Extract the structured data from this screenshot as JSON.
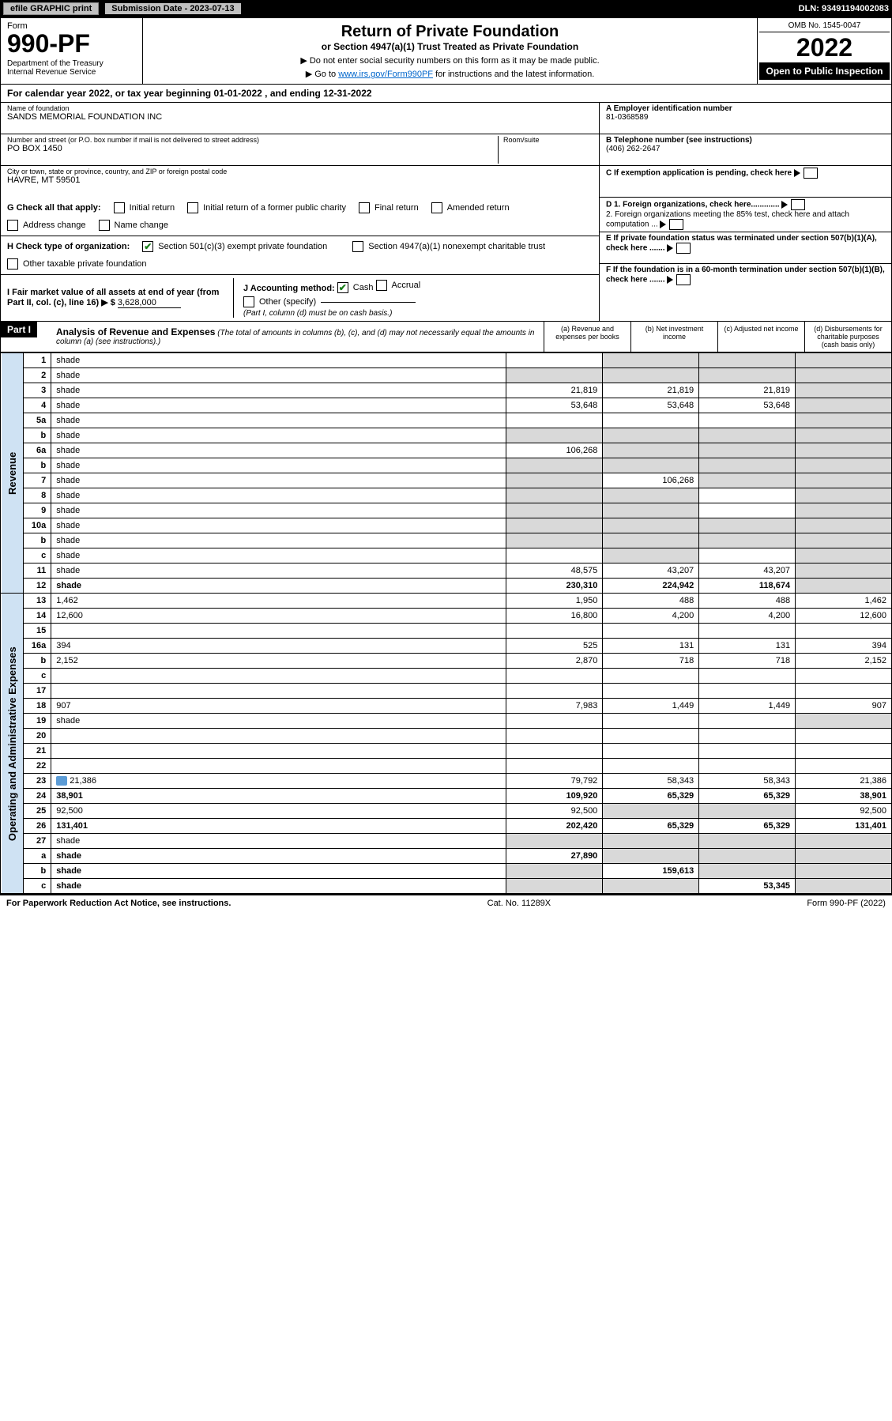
{
  "topbar": {
    "efile": "efile GRAPHIC print",
    "submission": "Submission Date - 2023-07-13",
    "dln": "DLN: 93491194002083"
  },
  "header": {
    "form_label": "Form",
    "form_no": "990-PF",
    "dept": "Department of the Treasury\nInternal Revenue Service",
    "title": "Return of Private Foundation",
    "subtitle": "or Section 4947(a)(1) Trust Treated as Private Foundation",
    "note1": "▶ Do not enter social security numbers on this form as it may be made public.",
    "note2_pre": "▶ Go to ",
    "note2_link": "www.irs.gov/Form990PF",
    "note2_post": " for instructions and the latest information.",
    "omb": "OMB No. 1545-0047",
    "year": "2022",
    "open": "Open to Public Inspection"
  },
  "calendar": "For calendar year 2022, or tax year beginning 01-01-2022                          , and ending 12-31-2022",
  "info": {
    "name_label": "Name of foundation",
    "name": "SANDS MEMORIAL FOUNDATION INC",
    "addr_label": "Number and street (or P.O. box number if mail is not delivered to street address)",
    "addr": "PO BOX 1450",
    "room_label": "Room/suite",
    "city_label": "City or town, state or province, country, and ZIP or foreign postal code",
    "city": "HAVRE, MT  59501",
    "a_label": "A Employer identification number",
    "a_val": "81-0368589",
    "b_label": "B Telephone number (see instructions)",
    "b_val": "(406) 262-2647",
    "c_label": "C If exemption application is pending, check here",
    "d1": "D 1. Foreign organizations, check here.............",
    "d2": "2. Foreign organizations meeting the 85% test, check here and attach computation ...",
    "e": "E  If private foundation status was terminated under section 507(b)(1)(A), check here .......",
    "f": "F  If the foundation is in a 60-month termination under section 507(b)(1)(B), check here .......",
    "g_label": "G Check all that apply:",
    "g_opts": [
      "Initial return",
      "Initial return of a former public charity",
      "Final return",
      "Amended return",
      "Address change",
      "Name change"
    ],
    "h_label": "H Check type of organization:",
    "h_opt1": "Section 501(c)(3) exempt private foundation",
    "h_opt2": "Section 4947(a)(1) nonexempt charitable trust",
    "h_opt3": "Other taxable private foundation",
    "i_label": "I Fair market value of all assets at end of year (from Part II, col. (c), line 16) ▶ $",
    "i_val": "3,628,000",
    "j_label": "J Accounting method:",
    "j_cash": "Cash",
    "j_accrual": "Accrual",
    "j_other": "Other (specify)",
    "j_note": "(Part I, column (d) must be on cash basis.)"
  },
  "part1": {
    "tag": "Part I",
    "title": "Analysis of Revenue and Expenses",
    "note": "(The total of amounts in columns (b), (c), and (d) may not necessarily equal the amounts in column (a) (see instructions).)",
    "col_a": "(a)   Revenue and expenses per books",
    "col_b": "(b)   Net investment income",
    "col_c": "(c)   Adjusted net income",
    "col_d": "(d)   Disbursements for charitable purposes (cash basis only)"
  },
  "side": {
    "rev": "Revenue",
    "exp": "Operating and Administrative Expenses"
  },
  "rows": [
    {
      "n": "1",
      "d": "shade",
      "a": "",
      "b": "shade",
      "c": "shade"
    },
    {
      "n": "2",
      "d": "shade",
      "a": "shade",
      "b": "shade",
      "c": "shade",
      "ck": true
    },
    {
      "n": "3",
      "d": "shade",
      "a": "21,819",
      "b": "21,819",
      "c": "21,819"
    },
    {
      "n": "4",
      "d": "shade",
      "a": "53,648",
      "b": "53,648",
      "c": "53,648"
    },
    {
      "n": "5a",
      "d": "shade",
      "a": "",
      "b": "",
      "c": ""
    },
    {
      "n": "b",
      "d": "shade",
      "a": "shade",
      "b": "shade",
      "c": "shade",
      "inset": true
    },
    {
      "n": "6a",
      "d": "shade",
      "a": "106,268",
      "b": "shade",
      "c": "shade"
    },
    {
      "n": "b",
      "d": "shade",
      "a": "shade",
      "b": "shade",
      "c": "shade",
      "inset": true
    },
    {
      "n": "7",
      "d": "shade",
      "a": "shade",
      "b": "106,268",
      "c": "shade"
    },
    {
      "n": "8",
      "d": "shade",
      "a": "shade",
      "b": "shade",
      "c": ""
    },
    {
      "n": "9",
      "d": "shade",
      "a": "shade",
      "b": "shade",
      "c": ""
    },
    {
      "n": "10a",
      "d": "shade",
      "a": "shade",
      "b": "shade",
      "c": "shade",
      "inset": true
    },
    {
      "n": "b",
      "d": "shade",
      "a": "shade",
      "b": "shade",
      "c": "shade",
      "inset": true
    },
    {
      "n": "c",
      "d": "shade",
      "a": "",
      "b": "shade",
      "c": ""
    },
    {
      "n": "11",
      "d": "shade",
      "a": "48,575",
      "b": "43,207",
      "c": "43,207"
    },
    {
      "n": "12",
      "d": "shade",
      "a": "230,310",
      "b": "224,942",
      "c": "118,674",
      "bold": true
    }
  ],
  "exp_rows": [
    {
      "n": "13",
      "d": "1,462",
      "a": "1,950",
      "b": "488",
      "c": "488"
    },
    {
      "n": "14",
      "d": "12,600",
      "a": "16,800",
      "b": "4,200",
      "c": "4,200"
    },
    {
      "n": "15",
      "d": "",
      "a": "",
      "b": "",
      "c": ""
    },
    {
      "n": "16a",
      "d": "394",
      "a": "525",
      "b": "131",
      "c": "131"
    },
    {
      "n": "b",
      "d": "2,152",
      "a": "2,870",
      "b": "718",
      "c": "718"
    },
    {
      "n": "c",
      "d": "",
      "a": "",
      "b": "",
      "c": ""
    },
    {
      "n": "17",
      "d": "",
      "a": "",
      "b": "",
      "c": ""
    },
    {
      "n": "18",
      "d": "907",
      "a": "7,983",
      "b": "1,449",
      "c": "1,449"
    },
    {
      "n": "19",
      "d": "shade",
      "a": "",
      "b": "",
      "c": ""
    },
    {
      "n": "20",
      "d": "",
      "a": "",
      "b": "",
      "c": ""
    },
    {
      "n": "21",
      "d": "",
      "a": "",
      "b": "",
      "c": ""
    },
    {
      "n": "22",
      "d": "",
      "a": "",
      "b": "",
      "c": ""
    },
    {
      "n": "23",
      "d": "21,386",
      "a": "79,792",
      "b": "58,343",
      "c": "58,343",
      "att": true
    },
    {
      "n": "24",
      "d": "38,901",
      "a": "109,920",
      "b": "65,329",
      "c": "65,329",
      "bold": true
    },
    {
      "n": "25",
      "d": "92,500",
      "a": "92,500",
      "b": "shade",
      "c": "shade"
    },
    {
      "n": "26",
      "d": "131,401",
      "a": "202,420",
      "b": "65,329",
      "c": "65,329",
      "bold": true
    },
    {
      "n": "27",
      "d": "shade",
      "a": "shade",
      "b": "shade",
      "c": "shade"
    },
    {
      "n": "a",
      "d": "shade",
      "a": "27,890",
      "b": "shade",
      "c": "shade",
      "bold": true
    },
    {
      "n": "b",
      "d": "shade",
      "a": "shade",
      "b": "159,613",
      "c": "shade",
      "bold": true
    },
    {
      "n": "c",
      "d": "shade",
      "a": "shade",
      "b": "shade",
      "c": "53,345",
      "bold": true
    }
  ],
  "footer": {
    "left": "For Paperwork Reduction Act Notice, see instructions.",
    "center": "Cat. No. 11289X",
    "right": "Form 990-PF (2022)"
  }
}
